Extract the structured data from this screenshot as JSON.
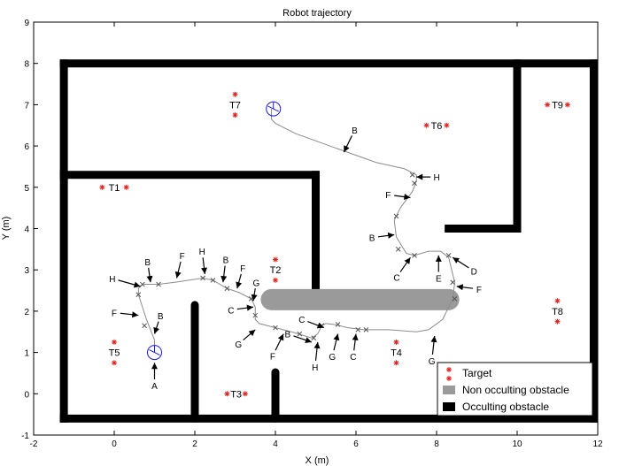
{
  "chart_data": {
    "type": "scatter",
    "title": "Robot trajectory",
    "xlabel": "X (m)",
    "ylabel": "Y (m)",
    "xlim": [
      -2,
      12
    ],
    "ylim": [
      -1,
      9
    ],
    "xticks": [
      -2,
      0,
      2,
      4,
      6,
      8,
      10,
      12
    ],
    "yticks": [
      -1,
      0,
      1,
      2,
      3,
      4,
      5,
      6,
      7,
      8,
      9
    ],
    "grid": false,
    "legend_position": "bottom-right",
    "legend": [
      {
        "label": "Target",
        "kind": "target",
        "color": "#e0201b"
      },
      {
        "label": "Non occulting obstacle",
        "kind": "non-occulting",
        "color": "#9a9a9a"
      },
      {
        "label": "Occulting obstacle",
        "kind": "occulting",
        "color": "#000000"
      }
    ],
    "colors": {
      "occulting": "#000000",
      "non_occulting": "#9a9a9a",
      "target": "#e0201b",
      "trajectory": "#8c8c8c",
      "robot": "#1a1adc"
    },
    "occulting_walls": [
      {
        "points": [
          [
            -1.25,
            8.0
          ],
          [
            11.9,
            8.0
          ]
        ]
      },
      {
        "points": [
          [
            -1.25,
            8.0
          ],
          [
            -1.25,
            -0.6
          ]
        ]
      },
      {
        "points": [
          [
            -1.25,
            -0.6
          ],
          [
            11.9,
            -0.6
          ]
        ]
      },
      {
        "points": [
          [
            11.9,
            8.0
          ],
          [
            11.9,
            -0.6
          ]
        ]
      },
      {
        "points": [
          [
            -1.25,
            5.3
          ],
          [
            5.0,
            5.3
          ]
        ]
      },
      {
        "points": [
          [
            5.0,
            5.3
          ],
          [
            5.0,
            2.5
          ]
        ]
      },
      {
        "points": [
          [
            10.0,
            8.0
          ],
          [
            10.0,
            4.0
          ]
        ]
      },
      {
        "points": [
          [
            10.0,
            4.0
          ],
          [
            8.3,
            4.0
          ]
        ]
      },
      {
        "points": [
          [
            2.0,
            2.15
          ],
          [
            2.0,
            -0.6
          ]
        ]
      },
      {
        "points": [
          [
            4.0,
            0.52
          ],
          [
            4.0,
            -0.6
          ]
        ]
      }
    ],
    "non_occulting_obstacles": [
      {
        "points": [
          [
            3.9,
            2.28
          ],
          [
            8.3,
            2.28
          ]
        ]
      }
    ],
    "targets": [
      {
        "label": "T1",
        "points": [
          [
            -0.3,
            5.0
          ],
          [
            0.3,
            5.0
          ]
        ]
      },
      {
        "label": "T2",
        "points": [
          [
            4.0,
            3.25
          ],
          [
            4.0,
            2.75
          ]
        ]
      },
      {
        "label": "T3",
        "points": [
          [
            2.8,
            0.0
          ],
          [
            3.25,
            0.0
          ]
        ]
      },
      {
        "label": "T4",
        "points": [
          [
            7.0,
            1.25
          ],
          [
            7.0,
            0.75
          ]
        ]
      },
      {
        "label": "T5",
        "points": [
          [
            0.0,
            1.25
          ],
          [
            0.0,
            0.75
          ]
        ]
      },
      {
        "label": "T6",
        "points": [
          [
            7.75,
            6.5
          ],
          [
            8.25,
            6.5
          ]
        ]
      },
      {
        "label": "T7",
        "points": [
          [
            3.0,
            7.25
          ],
          [
            3.0,
            6.75
          ]
        ]
      },
      {
        "label": "T8",
        "points": [
          [
            11.0,
            2.25
          ],
          [
            11.0,
            1.75
          ]
        ]
      },
      {
        "label": "T9",
        "points": [
          [
            10.75,
            7.0
          ],
          [
            11.25,
            7.0
          ]
        ]
      }
    ],
    "trajectory": [
      [
        1.0,
        1.0
      ],
      [
        1.0,
        1.3
      ],
      [
        0.8,
        1.8
      ],
      [
        0.6,
        2.4
      ],
      [
        0.6,
        2.55
      ],
      [
        0.7,
        2.65
      ],
      [
        1.1,
        2.65
      ],
      [
        1.5,
        2.7
      ],
      [
        2.2,
        2.8
      ],
      [
        2.45,
        2.75
      ],
      [
        2.8,
        2.55
      ],
      [
        3.1,
        2.45
      ],
      [
        3.4,
        2.3
      ],
      [
        3.5,
        2.1
      ],
      [
        3.5,
        1.8
      ],
      [
        3.6,
        1.7
      ],
      [
        4.0,
        1.6
      ],
      [
        4.4,
        1.5
      ],
      [
        4.9,
        1.35
      ],
      [
        5.05,
        1.45
      ],
      [
        5.15,
        1.65
      ],
      [
        5.25,
        1.7
      ],
      [
        5.45,
        1.68
      ],
      [
        5.8,
        1.6
      ],
      [
        6.2,
        1.55
      ],
      [
        6.8,
        1.55
      ],
      [
        7.5,
        1.5
      ],
      [
        7.8,
        1.55
      ],
      [
        8.15,
        1.8
      ],
      [
        8.4,
        2.3
      ],
      [
        8.45,
        2.7
      ],
      [
        8.3,
        3.3
      ],
      [
        8.1,
        3.45
      ],
      [
        7.8,
        3.45
      ],
      [
        7.45,
        3.35
      ],
      [
        7.25,
        3.4
      ],
      [
        7.0,
        3.8
      ],
      [
        6.95,
        4.2
      ],
      [
        7.1,
        4.5
      ],
      [
        7.4,
        4.9
      ],
      [
        7.5,
        5.15
      ],
      [
        7.5,
        5.3
      ],
      [
        7.2,
        5.45
      ],
      [
        6.5,
        5.6
      ],
      [
        5.5,
        5.95
      ],
      [
        4.5,
        6.3
      ],
      [
        4.0,
        6.55
      ],
      [
        3.9,
        6.65
      ],
      [
        3.9,
        6.9
      ]
    ],
    "trajectory_markers": [
      [
        0.75,
        1.65
      ],
      [
        0.6,
        2.4
      ],
      [
        0.7,
        2.65
      ],
      [
        1.1,
        2.65
      ],
      [
        2.2,
        2.8
      ],
      [
        2.45,
        2.75
      ],
      [
        2.8,
        2.55
      ],
      [
        3.4,
        2.3
      ],
      [
        3.5,
        1.9
      ],
      [
        4.0,
        1.6
      ],
      [
        4.6,
        1.45
      ],
      [
        4.95,
        1.35
      ],
      [
        5.15,
        1.65
      ],
      [
        5.55,
        1.68
      ],
      [
        6.05,
        1.55
      ],
      [
        6.25,
        1.55
      ],
      [
        8.45,
        2.3
      ],
      [
        8.4,
        2.7
      ],
      [
        8.3,
        3.35
      ],
      [
        7.45,
        3.35
      ],
      [
        7.05,
        3.5
      ],
      [
        7.0,
        4.3
      ],
      [
        7.45,
        5.1
      ],
      [
        7.4,
        5.3
      ]
    ],
    "robot_markers": [
      [
        1.0,
        1.0
      ],
      [
        3.95,
        6.9
      ]
    ],
    "arrows": [
      {
        "label": "A",
        "tip": [
          1.0,
          0.75
        ],
        "tail": [
          1.0,
          0.35
        ]
      },
      {
        "label": "B",
        "tip": [
          1.0,
          1.45
        ],
        "tail": [
          1.1,
          1.75
        ]
      },
      {
        "label": "F",
        "tip": [
          0.6,
          1.9
        ],
        "tail": [
          0.15,
          1.95
        ]
      },
      {
        "label": "H",
        "tip": [
          0.65,
          2.6
        ],
        "tail": [
          0.1,
          2.75
        ]
      },
      {
        "label": "B",
        "tip": [
          0.9,
          2.7
        ],
        "tail": [
          0.85,
          3.05
        ]
      },
      {
        "label": "F",
        "tip": [
          1.55,
          2.8
        ],
        "tail": [
          1.65,
          3.2
        ]
      },
      {
        "label": "H",
        "tip": [
          2.25,
          2.9
        ],
        "tail": [
          2.2,
          3.3
        ]
      },
      {
        "label": "B",
        "tip": [
          2.7,
          2.7
        ],
        "tail": [
          2.75,
          3.1
        ]
      },
      {
        "label": "F",
        "tip": [
          3.05,
          2.55
        ],
        "tail": [
          3.15,
          2.9
        ]
      },
      {
        "label": "G",
        "tip": [
          3.45,
          2.25
        ],
        "tail": [
          3.5,
          2.55
        ]
      },
      {
        "label": "C",
        "tip": [
          3.45,
          2.1
        ],
        "tail": [
          3.05,
          2.05
        ]
      },
      {
        "label": "G",
        "tip": [
          3.5,
          1.55
        ],
        "tail": [
          3.2,
          1.3
        ]
      },
      {
        "label": "F",
        "tip": [
          4.2,
          1.45
        ],
        "tail": [
          4.0,
          1.05
        ]
      },
      {
        "label": "B",
        "tip": [
          4.9,
          1.25
        ],
        "tail": [
          4.45,
          1.4
        ]
      },
      {
        "label": "C",
        "tip": [
          5.2,
          1.6
        ],
        "tail": [
          4.8,
          1.75
        ]
      },
      {
        "label": "H",
        "tip": [
          5.05,
          1.25
        ],
        "tail": [
          5.0,
          0.8
        ]
      },
      {
        "label": "G",
        "tip": [
          5.55,
          1.45
        ],
        "tail": [
          5.45,
          1.05
        ]
      },
      {
        "label": "C",
        "tip": [
          6.0,
          1.45
        ],
        "tail": [
          5.95,
          1.05
        ]
      },
      {
        "label": "G",
        "tip": [
          7.95,
          1.4
        ],
        "tail": [
          7.9,
          0.95
        ]
      },
      {
        "label": "F",
        "tip": [
          8.5,
          2.6
        ],
        "tail": [
          8.9,
          2.55
        ]
      },
      {
        "label": "E",
        "tip": [
          8.05,
          3.35
        ],
        "tail": [
          8.05,
          2.95
        ]
      },
      {
        "label": "D",
        "tip": [
          8.4,
          3.3
        ],
        "tail": [
          8.8,
          3.05
        ]
      },
      {
        "label": "C",
        "tip": [
          7.35,
          3.3
        ],
        "tail": [
          7.1,
          2.95
        ]
      },
      {
        "label": "B",
        "tip": [
          6.95,
          3.85
        ],
        "tail": [
          6.55,
          3.8
        ]
      },
      {
        "label": "F",
        "tip": [
          7.35,
          4.75
        ],
        "tail": [
          6.95,
          4.8
        ]
      },
      {
        "label": "H",
        "tip": [
          7.5,
          5.25
        ],
        "tail": [
          7.85,
          5.25
        ]
      },
      {
        "label": "B",
        "tip": [
          5.7,
          5.85
        ],
        "tail": [
          5.9,
          6.25
        ]
      }
    ]
  }
}
